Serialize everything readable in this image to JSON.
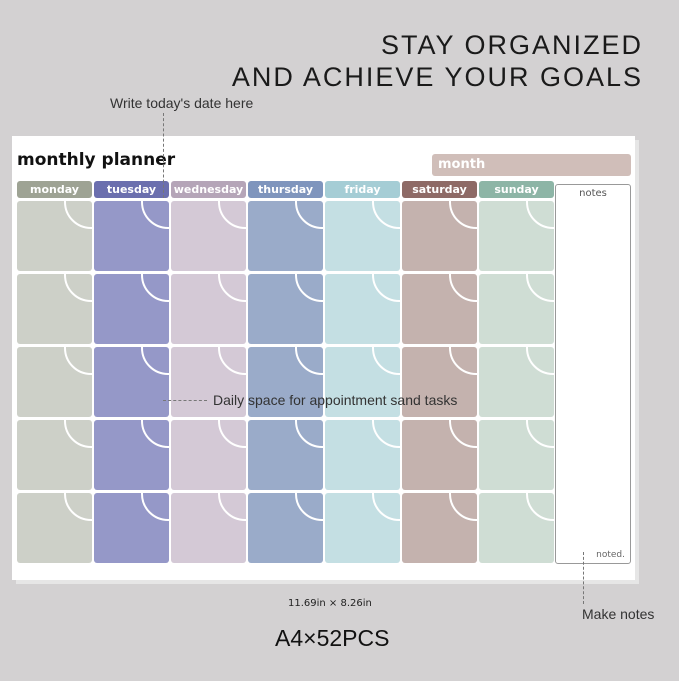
{
  "headline": [
    "STAY ORGANIZED",
    "AND ACHIEVE YOUR GOALS"
  ],
  "callouts": {
    "date": "Write today's date here",
    "daily": "Daily space for appointment sand tasks",
    "notes": "Make notes"
  },
  "planner": {
    "title": "monthly planner",
    "month_label": "month",
    "notes_label": "notes",
    "brand": "noted.",
    "rows": 5,
    "days": [
      {
        "label": "monday",
        "header": "#9ea394",
        "cell": "#cdd0c8"
      },
      {
        "label": "tuesday",
        "header": "#6b6fae",
        "cell": "#9598c8"
      },
      {
        "label": "wednesday",
        "header": "#b5a5b8",
        "cell": "#d4c9d6"
      },
      {
        "label": "thursday",
        "header": "#7f95bd",
        "cell": "#9aabc9"
      },
      {
        "label": "friday",
        "header": "#a5cdd5",
        "cell": "#c4dfe3"
      },
      {
        "label": "saturday",
        "header": "#8e6a66",
        "cell": "#c4b2ae"
      },
      {
        "label": "sunday",
        "header": "#8db5a6",
        "cell": "#cfddd4"
      }
    ]
  },
  "size": "11.69in × 8.26in",
  "pack": "A4×52PCS"
}
